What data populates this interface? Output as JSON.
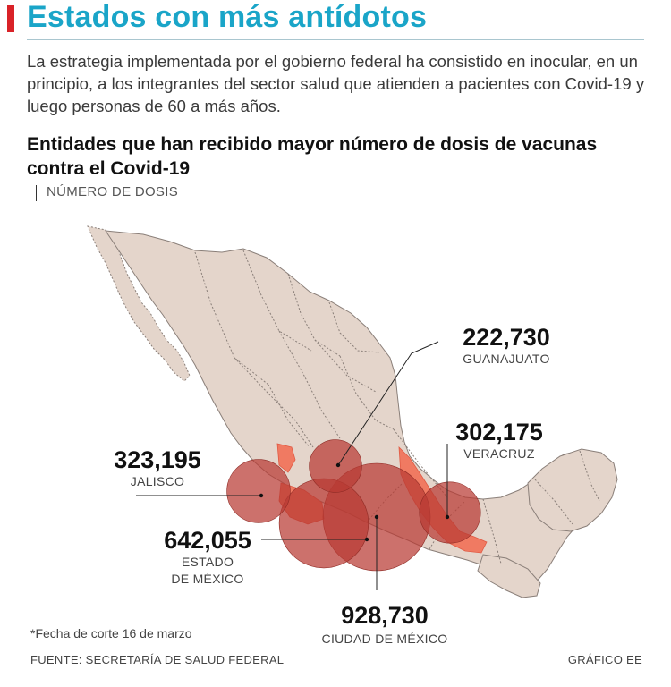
{
  "header": {
    "title": "Estados con más antídotos",
    "intro": "La estrategia implementada por el gobierno federal ha consistido en inocular, en un principio, a los integrantes del sector salud que atienden a pacientes con Covid-19 y luego personas de 60 a más años.",
    "subtitle": "Entidades que han recibido mayor número de dosis de vacunas contra el Covid-19",
    "unit": "NÚMERO DE DOSIS"
  },
  "colors": {
    "title": "#1aa5c8",
    "accent": "#d92228",
    "land": "#e4d5cb",
    "border": "#8a7f79",
    "highlight": "#f07a62",
    "bubble": "#b83a33"
  },
  "states": [
    {
      "name": "Guanajuato",
      "value": 222730,
      "value_label": "222,730",
      "label_lines": [
        "GUANAJUATO"
      ]
    },
    {
      "name": "Veracruz",
      "value": 302175,
      "value_label": "302,175",
      "label_lines": [
        "VERACRUZ"
      ]
    },
    {
      "name": "Jalisco",
      "value": 323195,
      "value_label": "323,195",
      "label_lines": [
        "JALISCO"
      ]
    },
    {
      "name": "Estado de México",
      "value": 642055,
      "value_label": "642,055",
      "label_lines": [
        "ESTADO",
        "DE MÉXICO"
      ]
    },
    {
      "name": "Ciudad de México",
      "value": 928730,
      "value_label": "928,730",
      "label_lines": [
        "CIUDAD DE MÉXICO"
      ]
    }
  ],
  "footer": {
    "note": "*Fecha de corte 16 de marzo",
    "source": "FUENTE: SECRETARÍA DE SALUD FEDERAL",
    "credit": "GRÁFICO EE"
  }
}
